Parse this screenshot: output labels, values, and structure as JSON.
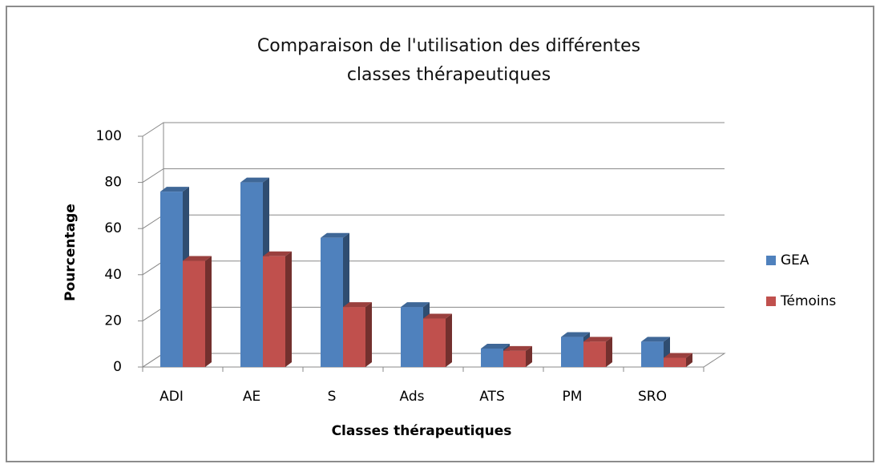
{
  "chart_data": {
    "type": "bar3d",
    "title": "Comparaison de l'utilisation des différentes classes thérapeutiques",
    "x_label": "Classes thérapeutiques",
    "y_label": "Pourcentage",
    "categories": [
      "ADI",
      "AE",
      "S",
      "Ads",
      "ATS",
      "PM",
      "SRO"
    ],
    "series": [
      {
        "name": "GEA",
        "color": "#4f81bd",
        "values": [
          76,
          80,
          56,
          26,
          8,
          13,
          11
        ]
      },
      {
        "name": "Témoins",
        "color": "#c0504d",
        "values": [
          46,
          48,
          26,
          21,
          7,
          11,
          4
        ]
      }
    ],
    "ylim": [
      0,
      100
    ],
    "yticks": [
      0,
      20,
      40,
      60,
      80,
      100
    ],
    "grid": true,
    "legend": "right"
  }
}
